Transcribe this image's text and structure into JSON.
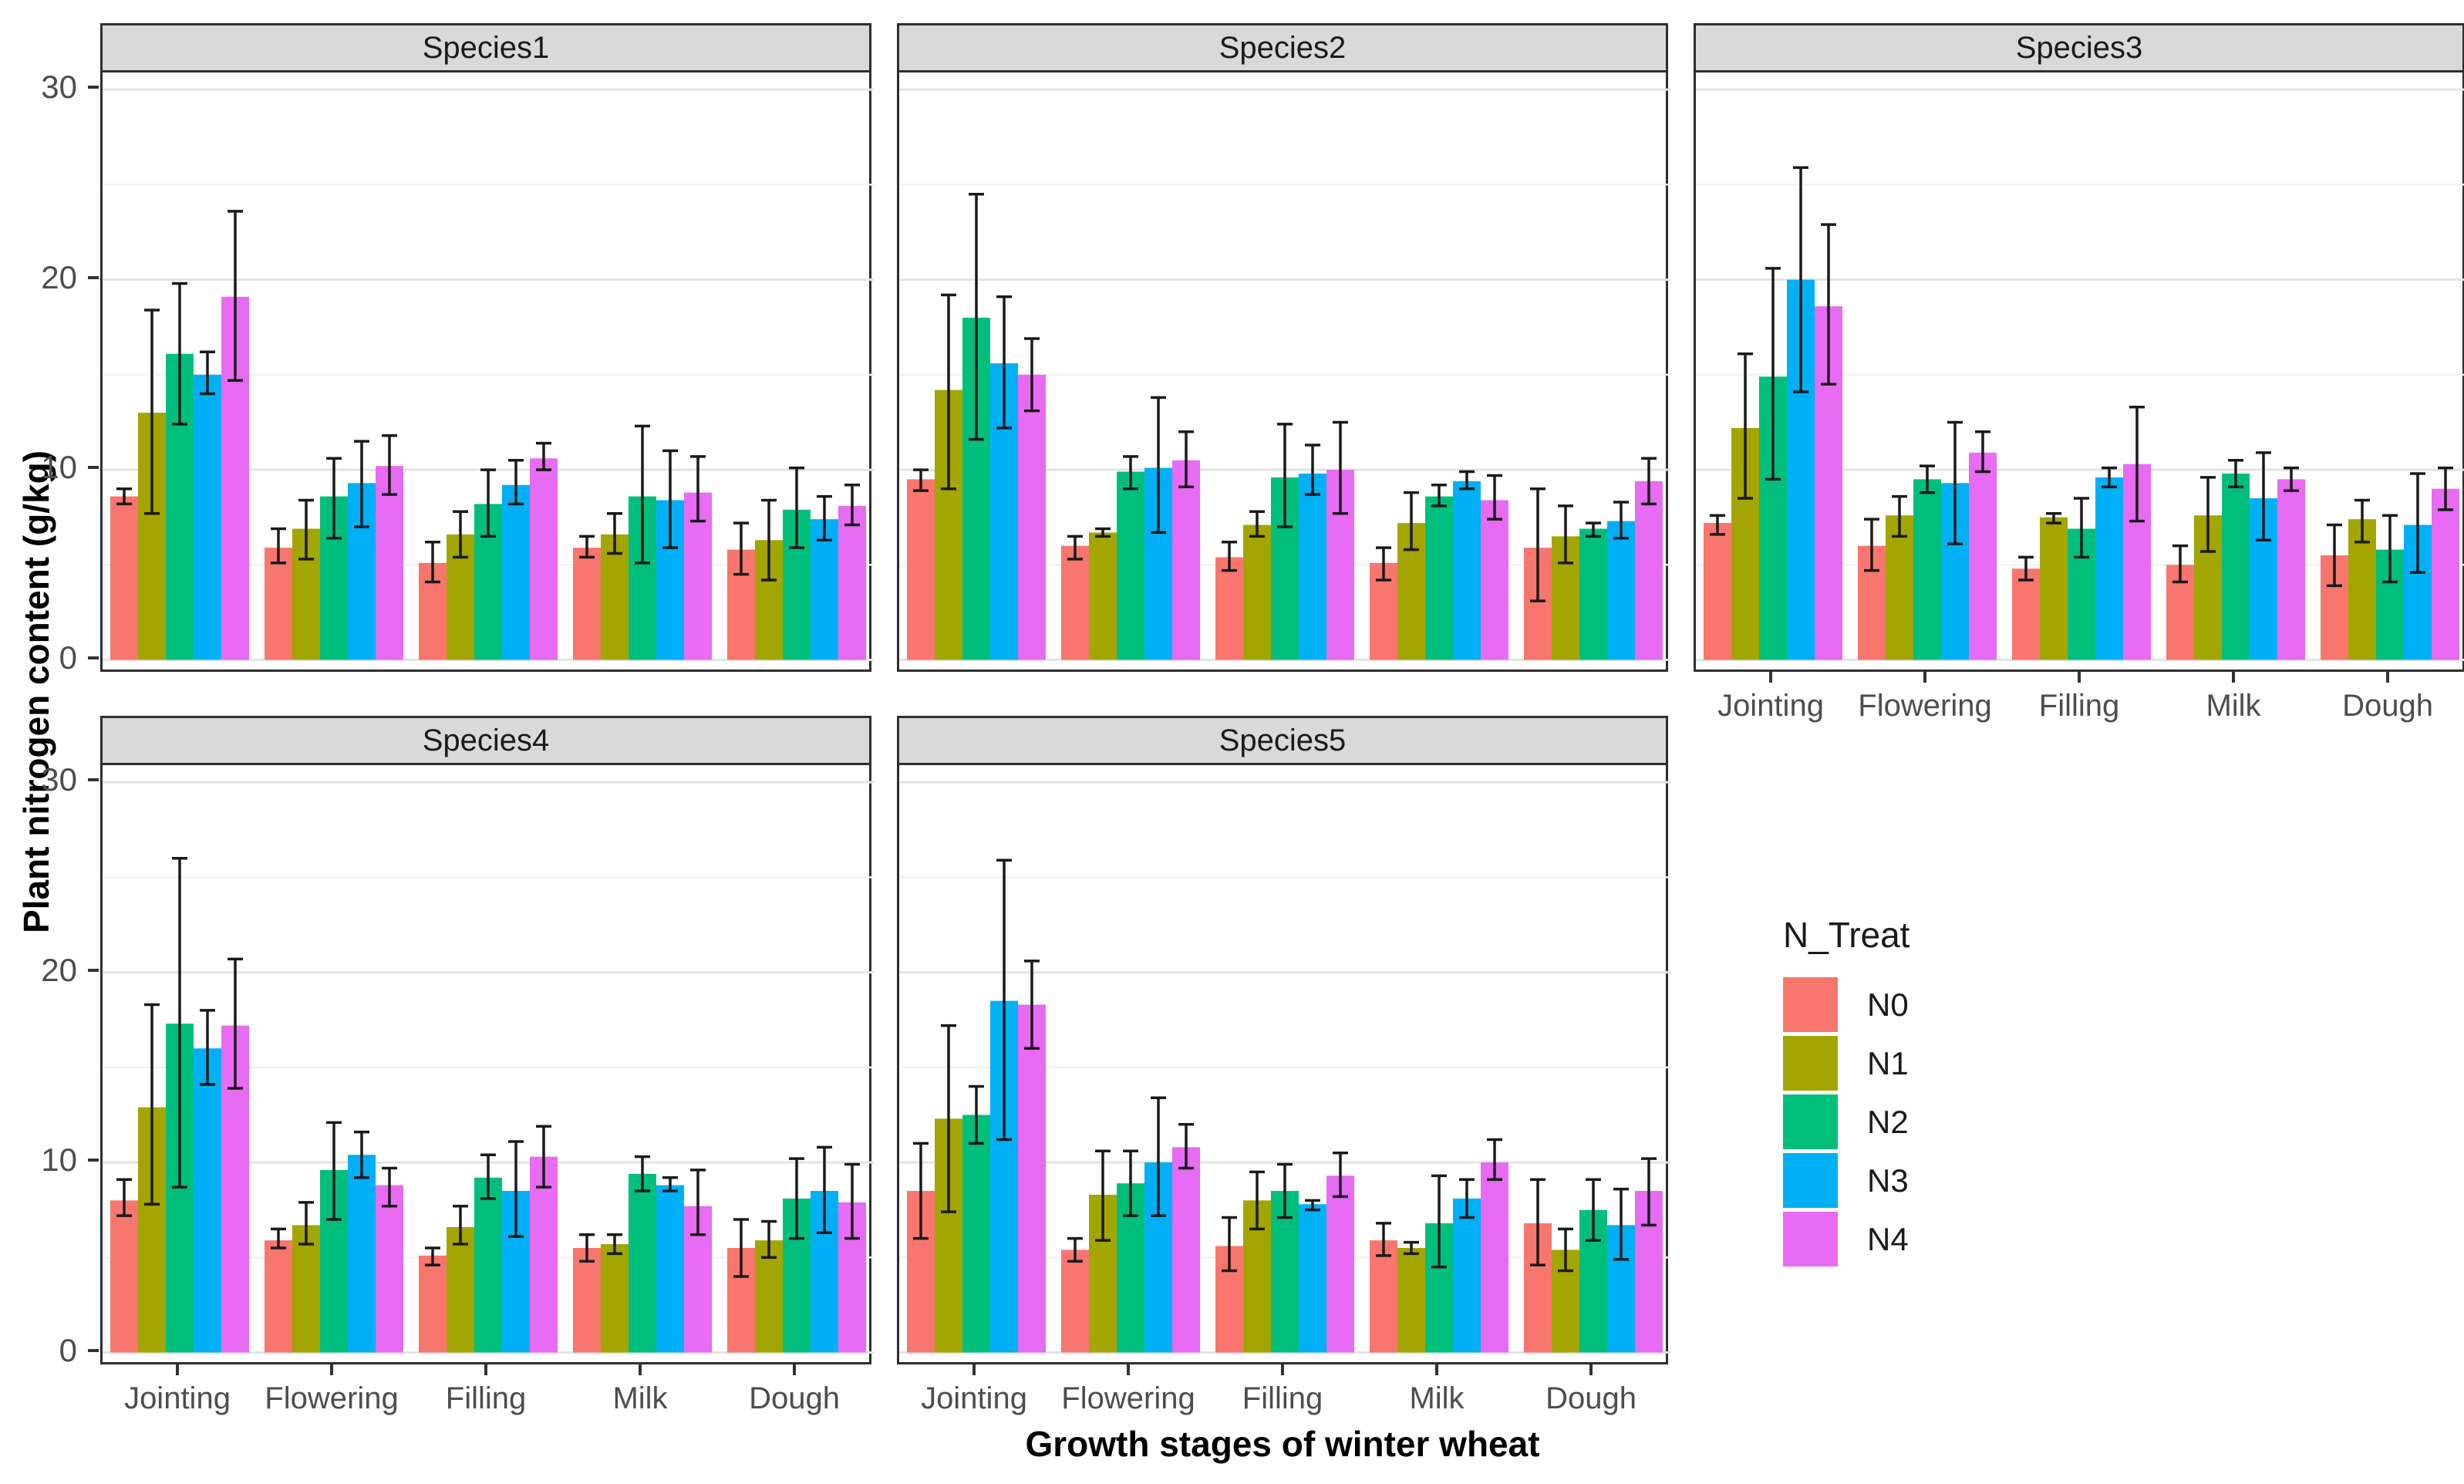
{
  "chart_data": {
    "type": "bar",
    "title": "",
    "categories": [
      "Jointing",
      "Flowering",
      "Filling",
      "Milk",
      "Dough"
    ],
    "xlabel": "Growth stages of winter wheat",
    "ylabel": "Plant nitrogen content (g/kg)",
    "ylim": [
      0,
      30
    ],
    "yticks": [
      0,
      10,
      20,
      30
    ],
    "minor_yticks": [
      5,
      15,
      25
    ],
    "grid": true,
    "error_bars": true,
    "legend": {
      "title": "N_Treat",
      "position": "right",
      "items": [
        {
          "label": "N0",
          "color": "#F8766D"
        },
        {
          "label": "N1",
          "color": "#A3A500"
        },
        {
          "label": "N2",
          "color": "#00BF7D"
        },
        {
          "label": "N3",
          "color": "#00B0F6"
        },
        {
          "label": "N4",
          "color": "#E76BF3"
        }
      ]
    },
    "facets": [
      {
        "label": "Species1",
        "show_x_axis": false,
        "series": [
          {
            "name": "N0",
            "values": [
              8.6,
              5.9,
              5.1,
              5.9,
              5.8
            ],
            "err_lo": [
              8.2,
              5.1,
              4.1,
              5.4,
              4.5
            ],
            "err_hi": [
              9.0,
              6.9,
              6.2,
              6.5,
              7.2
            ]
          },
          {
            "name": "N1",
            "values": [
              13.0,
              6.9,
              6.6,
              6.6,
              6.3
            ],
            "err_lo": [
              7.7,
              5.3,
              5.4,
              5.6,
              4.2
            ],
            "err_hi": [
              18.4,
              8.4,
              7.8,
              7.7,
              8.4
            ]
          },
          {
            "name": "N2",
            "values": [
              16.1,
              8.6,
              8.2,
              8.6,
              7.9
            ],
            "err_lo": [
              12.4,
              6.4,
              6.5,
              5.1,
              5.9
            ],
            "err_hi": [
              19.8,
              10.6,
              10.0,
              12.3,
              10.1
            ]
          },
          {
            "name": "N3",
            "values": [
              15.0,
              9.3,
              9.2,
              8.4,
              7.4
            ],
            "err_lo": [
              14.0,
              7.0,
              8.2,
              5.9,
              6.3
            ],
            "err_hi": [
              16.2,
              11.5,
              10.5,
              11.0,
              8.6
            ]
          },
          {
            "name": "N4",
            "values": [
              19.1,
              10.2,
              10.6,
              8.8,
              8.1
            ],
            "err_lo": [
              14.7,
              8.7,
              10.0,
              7.3,
              7.1
            ],
            "err_hi": [
              23.6,
              11.8,
              11.4,
              10.7,
              9.2
            ]
          }
        ]
      },
      {
        "label": "Species2",
        "show_x_axis": false,
        "series": [
          {
            "name": "N0",
            "values": [
              9.5,
              6.0,
              5.4,
              5.1,
              5.9
            ],
            "err_lo": [
              8.9,
              5.3,
              4.7,
              4.2,
              3.1
            ],
            "err_hi": [
              10.0,
              6.5,
              6.2,
              5.9,
              9.0
            ]
          },
          {
            "name": "N1",
            "values": [
              14.2,
              6.7,
              7.1,
              7.2,
              6.5
            ],
            "err_lo": [
              9.0,
              6.5,
              6.5,
              5.8,
              5.1
            ],
            "err_hi": [
              19.2,
              6.9,
              7.8,
              8.8,
              8.1
            ]
          },
          {
            "name": "N2",
            "values": [
              18.0,
              9.9,
              9.6,
              8.6,
              6.9
            ],
            "err_lo": [
              11.6,
              9.0,
              7.0,
              8.1,
              6.5
            ],
            "err_hi": [
              24.5,
              10.7,
              12.4,
              9.2,
              7.2
            ]
          },
          {
            "name": "N3",
            "values": [
              15.6,
              10.1,
              9.8,
              9.4,
              7.3
            ],
            "err_lo": [
              12.2,
              6.7,
              8.7,
              9.0,
              6.4
            ],
            "err_hi": [
              19.1,
              13.8,
              11.3,
              9.9,
              8.3
            ]
          },
          {
            "name": "N4",
            "values": [
              15.0,
              10.5,
              10.0,
              8.4,
              9.4
            ],
            "err_lo": [
              13.1,
              9.1,
              7.7,
              7.4,
              8.2
            ],
            "err_hi": [
              16.9,
              12.0,
              12.5,
              9.7,
              10.6
            ]
          }
        ]
      },
      {
        "label": "Species3",
        "show_x_axis": true,
        "series": [
          {
            "name": "N0",
            "values": [
              7.2,
              6.0,
              4.8,
              5.0,
              5.5
            ],
            "err_lo": [
              6.6,
              4.7,
              4.2,
              4.1,
              3.9
            ],
            "err_hi": [
              7.6,
              7.4,
              5.4,
              6.0,
              7.1
            ]
          },
          {
            "name": "N1",
            "values": [
              12.2,
              7.6,
              7.5,
              7.6,
              7.4
            ],
            "err_lo": [
              8.5,
              6.5,
              7.2,
              5.7,
              6.2
            ],
            "err_hi": [
              16.1,
              8.6,
              7.7,
              9.6,
              8.4
            ]
          },
          {
            "name": "N2",
            "values": [
              14.9,
              9.5,
              6.9,
              9.8,
              5.8
            ],
            "err_lo": [
              9.5,
              8.8,
              5.4,
              9.1,
              4.1
            ],
            "err_hi": [
              20.6,
              10.2,
              8.5,
              10.5,
              7.6
            ]
          },
          {
            "name": "N3",
            "values": [
              20.0,
              9.3,
              9.6,
              8.5,
              7.1
            ],
            "err_lo": [
              14.1,
              6.1,
              9.1,
              6.3,
              4.6
            ],
            "err_hi": [
              25.9,
              12.5,
              10.1,
              10.9,
              9.8
            ]
          },
          {
            "name": "N4",
            "values": [
              18.6,
              10.9,
              10.3,
              9.5,
              9.0
            ],
            "err_lo": [
              14.5,
              9.9,
              7.3,
              8.9,
              7.9
            ],
            "err_hi": [
              22.9,
              12.0,
              13.3,
              10.1,
              10.1
            ]
          }
        ]
      },
      {
        "label": "Species4",
        "show_x_axis": true,
        "series": [
          {
            "name": "N0",
            "values": [
              8.0,
              5.9,
              5.1,
              5.5,
              5.5
            ],
            "err_lo": [
              7.2,
              5.5,
              4.6,
              4.8,
              4.0
            ],
            "err_hi": [
              9.1,
              6.5,
              5.5,
              6.2,
              7.0
            ]
          },
          {
            "name": "N1",
            "values": [
              12.9,
              6.7,
              6.6,
              5.7,
              5.9
            ],
            "err_lo": [
              7.8,
              5.7,
              5.7,
              5.2,
              5.0
            ],
            "err_hi": [
              18.3,
              7.9,
              7.7,
              6.2,
              6.9
            ]
          },
          {
            "name": "N2",
            "values": [
              17.3,
              9.6,
              9.2,
              9.4,
              8.1
            ],
            "err_lo": [
              8.7,
              7.0,
              8.1,
              8.5,
              6.0
            ],
            "err_hi": [
              26.0,
              12.1,
              10.4,
              10.3,
              10.2
            ]
          },
          {
            "name": "N3",
            "values": [
              16.0,
              10.4,
              8.5,
              8.8,
              8.5
            ],
            "err_lo": [
              14.1,
              9.2,
              6.1,
              8.5,
              6.3
            ],
            "err_hi": [
              18.0,
              11.6,
              11.1,
              9.2,
              10.8
            ]
          },
          {
            "name": "N4",
            "values": [
              17.2,
              8.8,
              10.3,
              7.7,
              7.9
            ],
            "err_lo": [
              13.9,
              7.7,
              8.7,
              6.2,
              6.0
            ],
            "err_hi": [
              20.7,
              9.7,
              11.9,
              9.6,
              9.9
            ]
          }
        ]
      },
      {
        "label": "Species5",
        "show_x_axis": true,
        "series": [
          {
            "name": "N0",
            "values": [
              8.5,
              5.4,
              5.6,
              5.9,
              6.8
            ],
            "err_lo": [
              6.0,
              4.8,
              4.3,
              5.1,
              4.6
            ],
            "err_hi": [
              11.0,
              6.0,
              7.1,
              6.8,
              9.1
            ]
          },
          {
            "name": "N1",
            "values": [
              12.3,
              8.3,
              8.0,
              5.5,
              5.4
            ],
            "err_lo": [
              7.4,
              5.9,
              6.5,
              5.2,
              4.3
            ],
            "err_hi": [
              17.2,
              10.6,
              9.5,
              5.8,
              6.5
            ]
          },
          {
            "name": "N2",
            "values": [
              12.5,
              8.9,
              8.5,
              6.8,
              7.5
            ],
            "err_lo": [
              11.0,
              7.2,
              7.1,
              4.5,
              5.9
            ],
            "err_hi": [
              14.0,
              10.6,
              9.9,
              9.3,
              9.1
            ]
          },
          {
            "name": "N3",
            "values": [
              18.5,
              10.0,
              7.8,
              8.1,
              6.7
            ],
            "err_lo": [
              11.2,
              7.2,
              7.5,
              7.1,
              4.9
            ],
            "err_hi": [
              25.9,
              13.4,
              8.0,
              9.1,
              8.6
            ]
          },
          {
            "name": "N4",
            "values": [
              18.3,
              10.8,
              9.3,
              10.0,
              8.5
            ],
            "err_lo": [
              16.0,
              9.7,
              8.2,
              9.1,
              6.7
            ],
            "err_hi": [
              20.6,
              12.0,
              10.5,
              11.2,
              10.2
            ]
          }
        ]
      }
    ]
  }
}
